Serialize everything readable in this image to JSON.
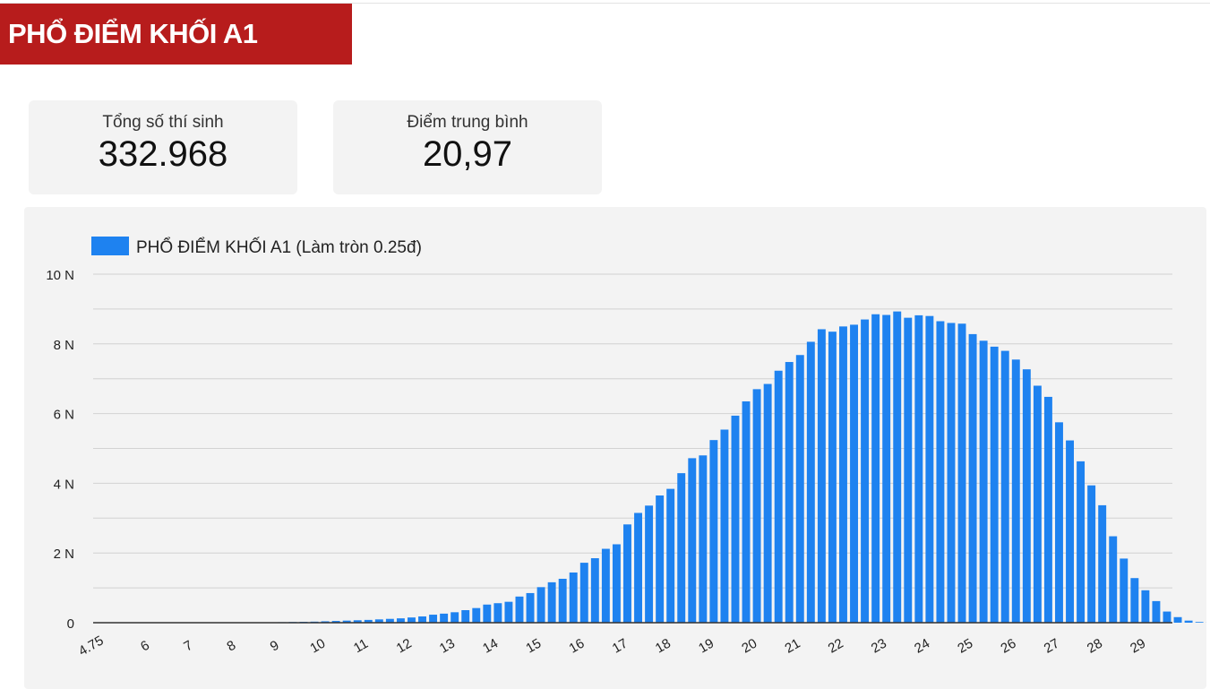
{
  "header": {
    "title": "PHỔ ĐIỂM KHỐI A1"
  },
  "stats": [
    {
      "label": "Tổng số thí sinh",
      "value": "332.968"
    },
    {
      "label": "Điểm trung bình",
      "value": "20,97"
    }
  ],
  "colors": {
    "banner": "#b71c1c",
    "bar": "#1e82f0"
  },
  "chart_data": {
    "type": "bar",
    "legend": {
      "label": "PHỔ ĐIỂM KHỐI A1 (Làm tròn 0.25đ)",
      "placement": "top-left"
    },
    "y_ticks": [
      {
        "value": 0,
        "label": "0"
      },
      {
        "value": 2000,
        "label": "2 N"
      },
      {
        "value": 4000,
        "label": "4 N"
      },
      {
        "value": 6000,
        "label": "6 N"
      },
      {
        "value": 8000,
        "label": "8 N"
      },
      {
        "value": 10000,
        "label": "10 N"
      }
    ],
    "ylim": [
      0,
      10000
    ],
    "xlim": [
      4.75,
      29.75
    ],
    "x_ticks": [
      {
        "value": 4.75,
        "label": "4.75"
      },
      {
        "value": 6,
        "label": "6"
      },
      {
        "value": 7,
        "label": "7"
      },
      {
        "value": 8,
        "label": "8"
      },
      {
        "value": 9,
        "label": "9"
      },
      {
        "value": 10,
        "label": "10"
      },
      {
        "value": 11,
        "label": "11"
      },
      {
        "value": 12,
        "label": "12"
      },
      {
        "value": 13,
        "label": "13"
      },
      {
        "value": 14,
        "label": "14"
      },
      {
        "value": 15,
        "label": "15"
      },
      {
        "value": 16,
        "label": "16"
      },
      {
        "value": 17,
        "label": "17"
      },
      {
        "value": 18,
        "label": "18"
      },
      {
        "value": 19,
        "label": "19"
      },
      {
        "value": 20,
        "label": "20"
      },
      {
        "value": 21,
        "label": "21"
      },
      {
        "value": 22,
        "label": "22"
      },
      {
        "value": 23,
        "label": "23"
      },
      {
        "value": 24,
        "label": "24"
      },
      {
        "value": 25,
        "label": "25"
      },
      {
        "value": 26,
        "label": "26"
      },
      {
        "value": 27,
        "label": "27"
      },
      {
        "value": 28,
        "label": "28"
      },
      {
        "value": 29,
        "label": "29"
      }
    ],
    "grid": true,
    "x_start": 4.75,
    "x_step": 0.25,
    "values": [
      0,
      0,
      0,
      0,
      0,
      0,
      0,
      0,
      0,
      0,
      0,
      0,
      0,
      5,
      8,
      10,
      12,
      15,
      20,
      25,
      30,
      40,
      50,
      60,
      70,
      80,
      95,
      110,
      125,
      150,
      180,
      230,
      260,
      300,
      360,
      420,
      520,
      560,
      600,
      750,
      850,
      1020,
      1160,
      1260,
      1440,
      1720,
      1850,
      2120,
      2250,
      2820,
      3150,
      3360,
      3650,
      3840,
      4290,
      4720,
      4800,
      5240,
      5540,
      5940,
      6350,
      6700,
      6850,
      7230,
      7480,
      7680,
      8060,
      8420,
      8350,
      8500,
      8550,
      8700,
      8850,
      8830,
      8930,
      8750,
      8820,
      8800,
      8650,
      8600,
      8580,
      8280,
      8090,
      7920,
      7800,
      7550,
      7270,
      6800,
      6480,
      5750,
      5230,
      4630,
      3940,
      3370,
      2480,
      1840,
      1280,
      930,
      620,
      320,
      160,
      60,
      20,
      10,
      5
    ]
  }
}
